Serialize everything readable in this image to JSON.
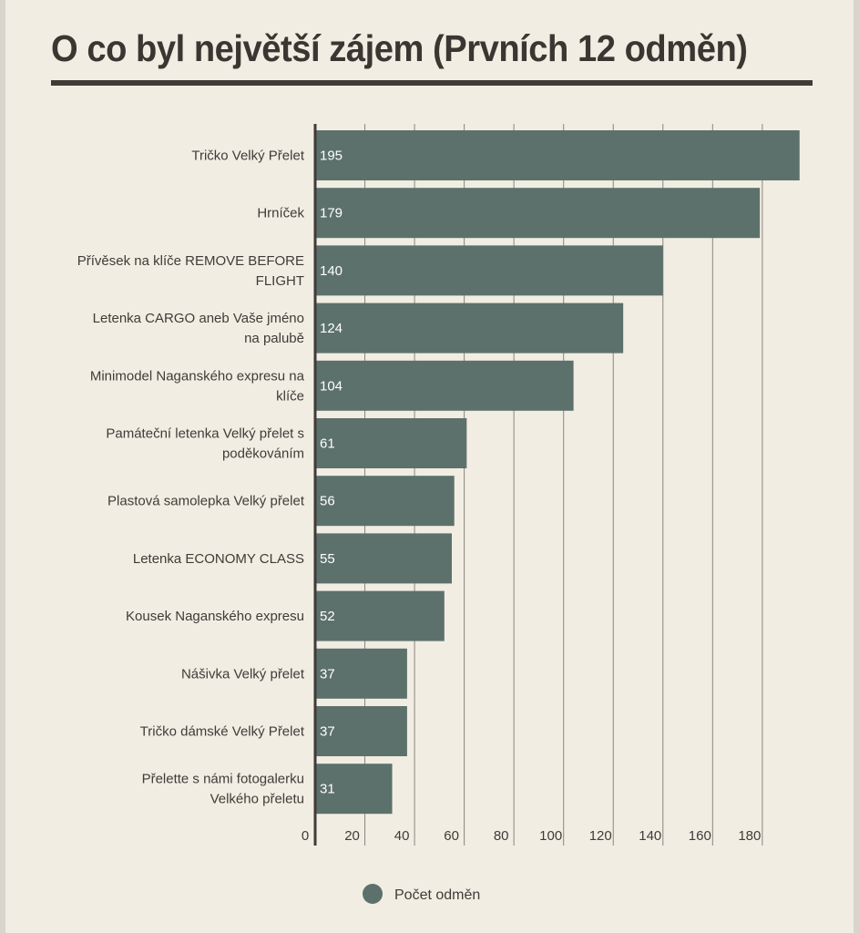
{
  "page": {
    "title": "O co byl největší zájem (Prvních 12 odměn)"
  },
  "colors": {
    "background": "#f1ede2",
    "bar": "#5d716c",
    "grid": "#8a8680",
    "axis": "#3f3c38",
    "title_rule": "#3f3c38"
  },
  "chart_data": {
    "type": "bar",
    "orientation": "horizontal",
    "categories": [
      "Tričko Velký Přelet",
      "Hrníček",
      "Přívěsek na klíče REMOVE BEFORE FLIGHT",
      "Letenka CARGO aneb Vaše jméno na palubě",
      "Minimodel Naganského expresu na klíče",
      "Památeční letenka Velký přelet s poděkováním",
      "Plastová samolepka Velký přelet",
      "Letenka ECONOMY CLASS",
      "Kousek Naganského expresu",
      "Nášivka Velký přelet",
      "Tričko dámské Velký Přelet",
      "Přelette s námi fotogalerku Velkého přeletu"
    ],
    "category_lines": [
      [
        "Tričko Velký Přelet"
      ],
      [
        "Hrníček"
      ],
      [
        "Přívěsek na klíče REMOVE BEFORE",
        "FLIGHT"
      ],
      [
        "Letenka CARGO aneb Vaše jméno",
        "na palubě"
      ],
      [
        "Minimodel Naganského expresu na",
        "klíče"
      ],
      [
        "Památeční letenka Velký přelet s",
        "poděkováním"
      ],
      [
        "Plastová samolepka Velký přelet"
      ],
      [
        "Letenka ECONOMY CLASS"
      ],
      [
        "Kousek Naganského expresu"
      ],
      [
        "Nášivka Velký přelet"
      ],
      [
        "Tričko dámské Velký Přelet"
      ],
      [
        "Přelette s námi fotogalerku",
        "Velkého přeletu"
      ]
    ],
    "series": [
      {
        "name": "Počet odměn",
        "values": [
          195,
          179,
          140,
          124,
          104,
          61,
          56,
          55,
          52,
          37,
          37,
          31
        ]
      }
    ],
    "xticks": [
      0,
      20,
      40,
      60,
      80,
      100,
      120,
      140,
      160,
      180
    ],
    "xlim": [
      0,
      195
    ],
    "grid": true,
    "legend": "bottom",
    "title": "O co byl největší zájem (Prvních 12 odměn)",
    "xlabel": "",
    "ylabel": ""
  }
}
